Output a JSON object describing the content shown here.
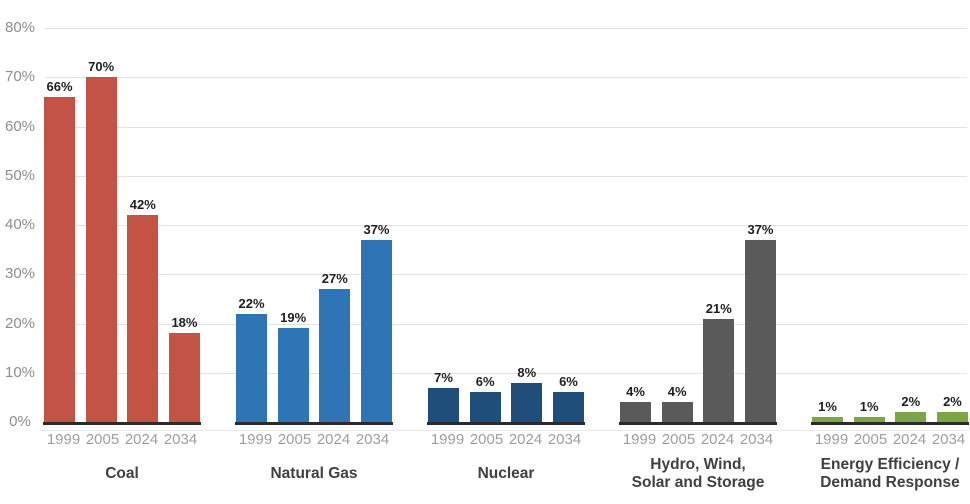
{
  "chart_data": {
    "type": "bar",
    "grid": true,
    "legend": "none",
    "ylim": [
      0,
      80
    ],
    "y_tick_values": [
      80,
      70,
      60,
      50,
      40,
      30,
      20,
      10,
      0
    ],
    "y_tick_labels": [
      "80%",
      "70%",
      "60%",
      "50%",
      "40%",
      "30%",
      "20%",
      "10%",
      "0%"
    ],
    "x_years": [
      "1999",
      "2005",
      "2024",
      "2034"
    ],
    "groups": [
      {
        "label_lines": [
          "Coal"
        ],
        "color": "#C25345",
        "values": [
          66,
          70,
          42,
          18
        ],
        "value_labels": [
          "66%",
          "70%",
          "42%",
          "18%"
        ]
      },
      {
        "label_lines": [
          "Natural Gas"
        ],
        "color": "#2E75B5",
        "values": [
          22,
          19,
          27,
          37
        ],
        "value_labels": [
          "22%",
          "19%",
          "27%",
          "37%"
        ]
      },
      {
        "label_lines": [
          "Nuclear"
        ],
        "color": "#1E4E79",
        "values": [
          7,
          6,
          8,
          6
        ],
        "value_labels": [
          "7%",
          "6%",
          "8%",
          "6%"
        ]
      },
      {
        "label_lines": [
          "Hydro, Wind,",
          "Solar and Storage"
        ],
        "color": "#5A5A5A",
        "values": [
          4,
          4,
          21,
          37
        ],
        "value_labels": [
          "4%",
          "4%",
          "21%",
          "37%"
        ]
      },
      {
        "label_lines": [
          "Energy Efficiency /",
          "Demand Response"
        ],
        "color": "#7CA644",
        "values": [
          1,
          1,
          2,
          2
        ],
        "value_labels": [
          "1%",
          "1%",
          "2%",
          "2%"
        ]
      }
    ],
    "colors": {
      "background": "#FFFFFF",
      "grid": "#E2E2E2",
      "zero_line": "#E8E8E8",
      "axis_baseline": "#2B2B2B",
      "tick_label": "#8C8C8C",
      "year_label": "#9E9E9E",
      "value_label": "#1F1F1F",
      "group_label": "#404040"
    }
  }
}
